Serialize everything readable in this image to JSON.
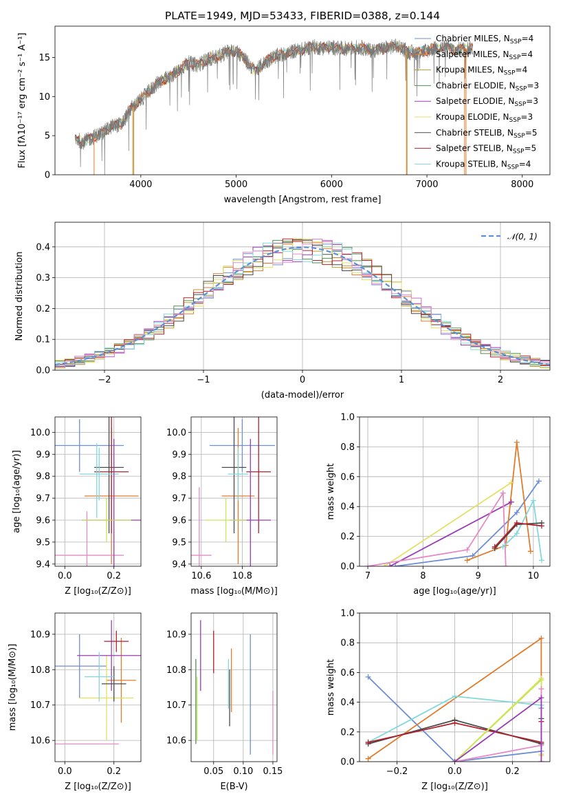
{
  "title": "PLATE=1949, MJD=53433, FIBERID=0388, z=0.144",
  "colors": {
    "Chabrier MILES": "#6c8ed6",
    "Salpeter MILES": "#e07b2a",
    "Kroupa MILES": "#b89a2e",
    "Chabrier ELODIE": "#4f8f4f",
    "Salpeter ELODIE": "#9b3bb5",
    "Kroupa ELODIE": "#e3e064",
    "Chabrier STELIB": "#4a4a4a",
    "Salpeter STELIB": "#b0202a",
    "Kroupa STELIB": "#82d8dc",
    "Pink": "#e58ac7",
    "Lime": "#c7e65a",
    "Normal": "#5b8fd6"
  },
  "chart_data": [
    {
      "id": "spectrum",
      "type": "line",
      "xlabel": "wavelength [Angstrom, rest frame]",
      "ylabel": "Flux [fλ10⁻¹⁷ erg cm⁻² s⁻¹ A⁻¹]",
      "xlim": [
        3100,
        8290
      ],
      "ylim": [
        0,
        19
      ],
      "xticks": [
        "4000",
        "5000",
        "6000",
        "7000",
        "8000"
      ],
      "yticks": [
        "0",
        "5",
        "10",
        "15"
      ],
      "legend_position": "top-right",
      "legend": [
        {
          "model": "Chabrier MILES",
          "label": "Chabrier MILES, N",
          "sub": "SSP",
          "suffix": "=4"
        },
        {
          "model": "Salpeter MILES",
          "label": "Salpeter MILES, N",
          "sub": "SSP",
          "suffix": "=4"
        },
        {
          "model": "Kroupa MILES",
          "label": "Kroupa MILES, N",
          "sub": "SSP",
          "suffix": "=4"
        },
        {
          "model": "Chabrier ELODIE",
          "label": "Chabrier ELODIE, N",
          "sub": "SSP",
          "suffix": "=3"
        },
        {
          "model": "Salpeter ELODIE",
          "label": "Salpeter ELODIE, N",
          "sub": "SSP",
          "suffix": "=3"
        },
        {
          "model": "Kroupa ELODIE",
          "label": "Kroupa ELODIE, N",
          "sub": "SSP",
          "suffix": "=3"
        },
        {
          "model": "Chabrier STELIB",
          "label": "Chabrier STELIB, N",
          "sub": "SSP",
          "suffix": "=5"
        },
        {
          "model": "Salpeter STELIB",
          "label": "Salpeter STELIB, N",
          "sub": "SSP",
          "suffix": "=5"
        },
        {
          "model": "Kroupa STELIB",
          "label": "Kroupa STELIB, N",
          "sub": "SSP",
          "suffix": "=4"
        }
      ],
      "observed_continuum": [
        [
          3300,
          4.6
        ],
        [
          3400,
          4.2
        ],
        [
          3500,
          4.8
        ],
        [
          3600,
          5.4
        ],
        [
          3700,
          6.2
        ],
        [
          3800,
          6.5
        ],
        [
          3900,
          8.5
        ],
        [
          4000,
          9.6
        ],
        [
          4100,
          10.8
        ],
        [
          4200,
          12.0
        ],
        [
          4300,
          12.4
        ],
        [
          4400,
          13.4
        ],
        [
          4500,
          14.3
        ],
        [
          4600,
          14.0
        ],
        [
          4700,
          14.8
        ],
        [
          4800,
          15.0
        ],
        [
          4900,
          15.7
        ],
        [
          5000,
          15.9
        ],
        [
          5100,
          14.6
        ],
        [
          5200,
          13.2
        ],
        [
          5300,
          14.4
        ],
        [
          5400,
          15.1
        ],
        [
          5500,
          15.4
        ],
        [
          5600,
          15.8
        ],
        [
          5700,
          16.0
        ],
        [
          5800,
          16.4
        ],
        [
          5900,
          16.2
        ],
        [
          6000,
          16.3
        ],
        [
          6100,
          16.1
        ],
        [
          6200,
          16.2
        ],
        [
          6300,
          16.3
        ],
        [
          6400,
          15.9
        ],
        [
          6500,
          16.0
        ],
        [
          6600,
          16.3
        ],
        [
          6700,
          16.5
        ],
        [
          6800,
          15.7
        ],
        [
          6900,
          15.6
        ],
        [
          7000,
          15.9
        ],
        [
          7100,
          16.2
        ],
        [
          7200,
          16.3
        ],
        [
          7300,
          15.9
        ],
        [
          7400,
          16.2
        ]
      ],
      "spectrum_range": [
        3310,
        7480
      ],
      "model_drop_lines": [
        {
          "model": "Salpeter MILES",
          "x": 3510
        },
        {
          "model": "Kroupa MILES",
          "x": 3915
        },
        {
          "model": "Salpeter MILES",
          "x": 3925
        },
        {
          "model": "Salpeter MILES",
          "x": 6785
        },
        {
          "model": "Kroupa MILES",
          "x": 6792
        },
        {
          "model": "Salpeter MILES",
          "x": 7395
        },
        {
          "model": "Salpeter MILES",
          "x": 7410
        }
      ]
    },
    {
      "id": "residuals",
      "type": "histogram",
      "xlabel": "(data-model)/error",
      "ylabel": "Normed distribution",
      "xlim": [
        -2.5,
        2.5
      ],
      "ylim": [
        0,
        0.48
      ],
      "xticks": [
        "−2",
        "−1",
        "0",
        "1",
        "2"
      ],
      "yticks": [
        "0.0",
        "0.1",
        "0.2",
        "0.3",
        "0.4"
      ],
      "grid": true,
      "legend_position": "top-right",
      "legend_label": "𝒩(0, 1)",
      "bin_width": 0.1,
      "series": [
        {
          "model": "Chabrier MILES",
          "phase": 0.0
        },
        {
          "model": "Salpeter MILES",
          "phase": 1.3
        },
        {
          "model": "Kroupa MILES",
          "phase": 2.6
        },
        {
          "model": "Chabrier ELODIE",
          "phase": 3.9
        },
        {
          "model": "Salpeter ELODIE",
          "phase": 5.2
        },
        {
          "model": "Kroupa ELODIE",
          "phase": 0.7
        },
        {
          "model": "Chabrier STELIB",
          "phase": 2.0
        },
        {
          "model": "Salpeter STELIB",
          "phase": 3.3
        },
        {
          "model": "Kroupa STELIB",
          "phase": 4.6
        },
        {
          "model": "Pink",
          "phase": 5.9
        }
      ]
    },
    {
      "id": "age_vs_Z",
      "type": "errorbar",
      "xlabel": "Z [log₁₀(Z/Z⊙)]",
      "ylabel": "age  [log₁₀(age/yr)]",
      "xlim": [
        -0.04,
        0.31
      ],
      "ylim": [
        9.39,
        10.07
      ],
      "xticks": [
        "0.0",
        "0.2"
      ],
      "yticks": [
        "9.4",
        "9.5",
        "9.6",
        "9.7",
        "9.8",
        "9.9",
        "10.0"
      ],
      "grid": true,
      "points": [
        {
          "model": "Chabrier MILES",
          "x": 0.06,
          "xerr": 0.18,
          "y": 9.94,
          "yerr": 0.12
        },
        {
          "model": "Salpeter MILES",
          "x": 0.19,
          "xerr": 0.11,
          "y": 9.71,
          "yerr": 0.31
        },
        {
          "model": "Chabrier STELIB",
          "x": 0.18,
          "xerr": 0.06,
          "y": 9.84,
          "yerr": 0.3
        },
        {
          "model": "Salpeter STELIB",
          "x": 0.19,
          "xerr": 0.07,
          "y": 9.82,
          "yerr": 0.28
        },
        {
          "model": "Kroupa STELIB",
          "x": 0.14,
          "xerr": 0.08,
          "y": 9.81,
          "yerr": 0.12
        },
        {
          "model": "Pink",
          "x": 0.09,
          "xerr": 0.15,
          "y": 9.44,
          "yerr": 0.2
        },
        {
          "model": "Salpeter ELODIE",
          "x": 0.2,
          "xerr": 0.13,
          "y": 9.6,
          "yerr": 0.37
        },
        {
          "model": "Lime",
          "x": 0.17,
          "xerr": 0.1,
          "y": 9.6,
          "yerr": 0.1
        },
        {
          "model": "Kroupa STELIB",
          "x": 0.13,
          "xerr": 0.0,
          "y": 9.78,
          "yerr": 0.17
        }
      ]
    },
    {
      "id": "age_vs_mass",
      "type": "errorbar",
      "xlabel": "mass [log₁₀(M/M⊙)]",
      "xlim": [
        10.55,
        10.97
      ],
      "ylim": [
        9.39,
        10.07
      ],
      "xticks": [
        "10.6",
        "10.8"
      ],
      "yticks": [
        "9.4",
        "9.5",
        "9.6",
        "9.7",
        "9.8",
        "9.9",
        "10.0"
      ],
      "grid": true,
      "points": [
        {
          "model": "Chabrier MILES",
          "x": 10.8,
          "xerr": 0.16,
          "y": 9.94,
          "yerr": 0.12
        },
        {
          "model": "Salpeter MILES",
          "x": 10.78,
          "xerr": 0.08,
          "y": 9.71,
          "yerr": 0.31
        },
        {
          "model": "Chabrier STELIB",
          "x": 10.76,
          "xerr": 0.06,
          "y": 9.84,
          "yerr": 0.3
        },
        {
          "model": "Salpeter STELIB",
          "x": 10.88,
          "xerr": 0.06,
          "y": 9.82,
          "yerr": 0.28
        },
        {
          "model": "Kroupa STELIB",
          "x": 10.78,
          "xerr": 0.05,
          "y": 9.81,
          "yerr": 0.12
        },
        {
          "model": "Pink",
          "x": 10.59,
          "xerr": 0.06,
          "y": 9.44,
          "yerr": 0.31
        },
        {
          "model": "Salpeter ELODIE",
          "x": 10.84,
          "xerr": 0.1,
          "y": 9.6,
          "yerr": 0.37
        },
        {
          "model": "Lime",
          "x": 10.72,
          "xerr": 0.1,
          "y": 9.6,
          "yerr": 0.1
        }
      ]
    },
    {
      "id": "weight_vs_age",
      "type": "line",
      "xlabel": "age  [log₁₀(age/yr)]",
      "ylabel": "mass weight",
      "xlim": [
        6.85,
        10.3
      ],
      "ylim": [
        0,
        1
      ],
      "xticks": [
        "7",
        "8",
        "9",
        "10"
      ],
      "yticks": [
        "0.0",
        "0.2",
        "0.4",
        "0.6",
        "0.8",
        "1.0"
      ],
      "grid": true,
      "series": [
        {
          "model": "Chabrier MILES",
          "points": [
            [
              7.5,
              0.0
            ],
            [
              8.9,
              0.07
            ],
            [
              9.7,
              0.36
            ],
            [
              10.1,
              0.57
            ]
          ]
        },
        {
          "model": "Salpeter MILES",
          "points": [
            [
              8.8,
              0.04
            ],
            [
              9.5,
              0.14
            ],
            [
              9.7,
              0.83
            ],
            [
              9.95,
              0.1
            ]
          ]
        },
        {
          "model": "Salpeter ELODIE",
          "points": [
            [
              7.4,
              0.0
            ],
            [
              9.6,
              0.43
            ]
          ]
        },
        {
          "model": "Kroupa ELODIE",
          "points": [
            [
              7.3,
              0.0
            ],
            [
              9.6,
              0.56
            ]
          ]
        },
        {
          "model": "Pink",
          "points": [
            [
              7.0,
              0.0
            ],
            [
              8.8,
              0.11
            ],
            [
              9.45,
              0.49
            ],
            [
              9.5,
              0.0
            ]
          ]
        },
        {
          "model": "Kroupa STELIB",
          "points": [
            [
              9.45,
              0.13
            ],
            [
              9.7,
              0.22
            ],
            [
              10.0,
              0.44
            ],
            [
              10.15,
              0.04
            ]
          ]
        },
        {
          "model": "Chabrier STELIB",
          "points": [
            [
              9.3,
              0.12
            ],
            [
              9.7,
              0.28
            ],
            [
              10.15,
              0.29
            ]
          ]
        },
        {
          "model": "Salpeter STELIB",
          "points": [
            [
              9.3,
              0.13
            ],
            [
              9.7,
              0.29
            ],
            [
              10.15,
              0.27
            ]
          ]
        }
      ]
    },
    {
      "id": "mass_vs_Z",
      "type": "errorbar",
      "xlabel": "Z [log₁₀(Z/Z⊙)]",
      "ylabel": "mass [log₁₀(M/M⊙)]",
      "xlim": [
        -0.04,
        0.31
      ],
      "ylim": [
        10.54,
        10.96
      ],
      "xticks": [
        "0.0",
        "0.2"
      ],
      "yticks": [
        "10.6",
        "10.7",
        "10.8",
        "10.9"
      ],
      "grid": true,
      "points": [
        {
          "model": "Chabrier MILES",
          "x": 0.06,
          "xerr": 0.11,
          "y": 10.81,
          "yerr": 0.09
        },
        {
          "model": "Salpeter MILES",
          "x": 0.23,
          "xerr": 0.06,
          "y": 10.77,
          "yerr": 0.12
        },
        {
          "model": "Kroupa ELODIE",
          "x": 0.17,
          "xerr": 0.11,
          "y": 10.72,
          "yerr": 0.12
        },
        {
          "model": "Salpeter ELODIE",
          "x": 0.19,
          "xerr": 0.14,
          "y": 10.84,
          "yerr": 0.1
        },
        {
          "model": "Salpeter STELIB",
          "x": 0.21,
          "xerr": 0.05,
          "y": 10.88,
          "yerr": 0.03
        },
        {
          "model": "Chabrier STELIB",
          "x": 0.2,
          "xerr": 0.05,
          "y": 10.76,
          "yerr": 0.05
        },
        {
          "model": "Pink",
          "x": 0.09,
          "xerr": 0.13,
          "y": 10.59,
          "yerr": 0.0
        },
        {
          "model": "Kroupa STELIB",
          "x": 0.14,
          "xerr": 0.06,
          "y": 10.78,
          "yerr": 0.07
        }
      ]
    },
    {
      "id": "mass_vs_ebv",
      "type": "errorbar",
      "xlabel": "E(B-V)",
      "xlim": [
        0.012,
        0.157
      ],
      "ylim": [
        10.54,
        10.96
      ],
      "xticks": [
        "0.05",
        "0.10",
        "0.15"
      ],
      "yticks": [
        "10.6",
        "10.7",
        "10.8",
        "10.9"
      ],
      "grid": true,
      "points": [
        {
          "model": "Chabrier ELODIE",
          "x": 0.02,
          "y": 10.71,
          "yerr": 0.12
        },
        {
          "model": "Lime",
          "x": 0.022,
          "y": 10.69,
          "yerr": 0.09
        },
        {
          "model": "Salpeter ELODIE",
          "x": 0.028,
          "y": 10.84,
          "yerr": 0.1
        },
        {
          "model": "Salpeter STELIB",
          "x": 0.05,
          "y": 10.85,
          "yerr": 0.06
        },
        {
          "model": "Salpeter MILES",
          "x": 0.08,
          "y": 10.77,
          "yerr": 0.09
        },
        {
          "model": "Kroupa STELIB",
          "x": 0.075,
          "y": 10.76,
          "yerr": 0.07
        },
        {
          "model": "Chabrier STELIB",
          "x": 0.077,
          "y": 10.72,
          "yerr": 0.08
        },
        {
          "model": "Chabrier MILES",
          "x": 0.112,
          "y": 10.73,
          "yerr": 0.17
        },
        {
          "model": "Pink",
          "x": 0.15,
          "y": 10.65,
          "yerr": 0.09
        }
      ]
    },
    {
      "id": "weight_vs_Z",
      "type": "line",
      "xlabel": "Z [log₁₀(Z/Z⊙)]",
      "ylabel": "mass weight",
      "xlim": [
        -0.33,
        0.33
      ],
      "ylim": [
        0,
        1
      ],
      "xticks": [
        "−0.2",
        "0.0",
        "0.2"
      ],
      "yticks": [
        "0.0",
        "0.2",
        "0.4",
        "0.6",
        "0.8",
        "1.0"
      ],
      "grid": true,
      "series": [
        {
          "model": "Chabrier MILES",
          "points": [
            [
              -0.3,
              0.57
            ],
            [
              0.0,
              0.0
            ],
            [
              0.3,
              0.07
            ],
            [
              0.3,
              0.36
            ]
          ]
        },
        {
          "model": "Salpeter MILES",
          "points": [
            [
              -0.3,
              0.02
            ],
            [
              0.3,
              0.83
            ],
            [
              0.3,
              0.49
            ]
          ]
        },
        {
          "model": "Kroupa STELIB",
          "points": [
            [
              -0.3,
              0.13
            ],
            [
              0.0,
              0.44
            ],
            [
              0.3,
              0.38
            ],
            [
              0.3,
              0.04
            ]
          ]
        },
        {
          "model": "Chabrier STELIB",
          "points": [
            [
              -0.3,
              0.12
            ],
            [
              0.0,
              0.28
            ],
            [
              0.3,
              0.12
            ],
            [
              0.3,
              0.29
            ]
          ]
        },
        {
          "model": "Salpeter STELIB",
          "points": [
            [
              -0.3,
              0.13
            ],
            [
              0.0,
              0.26
            ],
            [
              0.3,
              0.13
            ],
            [
              0.3,
              0.27
            ]
          ]
        },
        {
          "model": "Kroupa ELODIE",
          "points": [
            [
              0.0,
              0.0
            ],
            [
              0.3,
              0.56
            ],
            [
              0.3,
              0.04
            ]
          ]
        },
        {
          "model": "Lime",
          "points": [
            [
              0.0,
              0.0
            ],
            [
              0.3,
              0.55
            ],
            [
              0.3,
              0.05
            ]
          ]
        },
        {
          "model": "Pink",
          "points": [
            [
              0.0,
              0.0
            ],
            [
              0.3,
              0.11
            ],
            [
              0.3,
              0.49
            ]
          ]
        },
        {
          "model": "Salpeter ELODIE",
          "points": [
            [
              0.0,
              0.0
            ],
            [
              0.3,
              0.43
            ],
            [
              0.3,
              0.0
            ]
          ]
        }
      ]
    }
  ]
}
